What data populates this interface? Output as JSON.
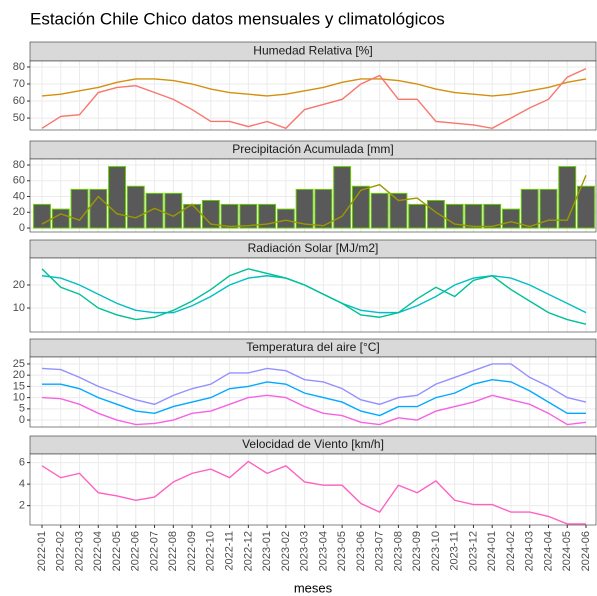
{
  "title": "Estación Chile Chico datos mensuales y climatológicos",
  "x_label": "meses",
  "categories": [
    "2022-01",
    "2022-02",
    "2022-03",
    "2022-04",
    "2022-05",
    "2022-06",
    "2022-07",
    "2022-08",
    "2022-09",
    "2022-10",
    "2022-11",
    "2022-12",
    "2023-01",
    "2023-02",
    "2023-03",
    "2023-04",
    "2023-05",
    "2023-06",
    "2023-07",
    "2023-08",
    "2023-09",
    "2023-10",
    "2023-11",
    "2023-12",
    "2024-01",
    "2024-02",
    "2024-03",
    "2024-04",
    "2024-05",
    "2024-06"
  ],
  "chart_data": [
    {
      "type": "line",
      "title": "Humedad Relativa [%]",
      "ylim": [
        43,
        83.5
      ],
      "yticks": [
        50,
        60,
        70,
        80
      ],
      "grid": true,
      "series": [
        {
          "color": "#d4900c",
          "values": [
            63,
            64,
            66,
            68,
            71,
            73,
            73,
            72,
            70,
            67,
            65,
            64,
            63,
            64,
            66,
            68,
            71,
            73,
            73,
            72,
            70,
            67,
            65,
            64,
            63,
            64,
            66,
            68,
            71,
            73
          ]
        },
        {
          "color": "#f8766d",
          "values": [
            44,
            51,
            52,
            65,
            68,
            69,
            65,
            61,
            55,
            48,
            48,
            45,
            48,
            44,
            55,
            58,
            61,
            70,
            75,
            61,
            61,
            48,
            47,
            46,
            44,
            50,
            56,
            61,
            74,
            79
          ]
        }
      ]
    },
    {
      "type": "combo",
      "title": "Precipitación Acumulada [mm]",
      "ylim": [
        -5,
        87.6
      ],
      "yticks": [
        0,
        20,
        40,
        60,
        80
      ],
      "grid": true,
      "color": "#595959",
      "edge_color": "#66cc00",
      "values": [
        30,
        24,
        49,
        49,
        78,
        53,
        44,
        44,
        30,
        35,
        30,
        30,
        30,
        24,
        49,
        49,
        78,
        53,
        44,
        44,
        30,
        35,
        30,
        30,
        30,
        24,
        49,
        49,
        78,
        53
      ],
      "series": [
        {
          "color": "#9a9a00",
          "values": [
            5,
            18,
            10,
            40,
            18,
            13,
            25,
            15,
            30,
            5,
            2,
            3,
            5,
            10,
            5,
            3,
            15,
            48,
            55,
            35,
            38,
            20,
            5,
            2,
            2,
            8,
            2,
            10,
            10,
            67
          ]
        }
      ]
    },
    {
      "type": "line",
      "title": "Radiación Solar [MJ/m2]",
      "ylim": [
        -0.4,
        31.7
      ],
      "yticks": [
        10,
        20
      ],
      "grid": true,
      "series": [
        {
          "color": "#00bfc4",
          "values": [
            24,
            23,
            20,
            16,
            12,
            9,
            8,
            8,
            11,
            15,
            20,
            23,
            24,
            23,
            20,
            16,
            12,
            9,
            8,
            8,
            11,
            15,
            20,
            23,
            24,
            23,
            20,
            16,
            12,
            8
          ]
        },
        {
          "color": "#00c094",
          "values": [
            27,
            19,
            16,
            10,
            7,
            5,
            6,
            9,
            13,
            18,
            24,
            27,
            25,
            23,
            20,
            16,
            12,
            7,
            6,
            8,
            14,
            19,
            15,
            22,
            24,
            18,
            13,
            8,
            5,
            3
          ]
        }
      ]
    },
    {
      "type": "line",
      "title": "Temperatura del aire [°C]",
      "ylim": [
        -3.1,
        28.1
      ],
      "yticks": [
        0,
        5,
        10,
        15,
        20,
        25
      ],
      "grid": true,
      "series": [
        {
          "color": "#9590ff",
          "values": [
            23,
            22.5,
            19,
            15,
            12,
            9,
            7,
            11,
            14,
            16,
            21,
            21,
            23,
            22,
            18,
            17,
            14,
            9,
            7,
            10,
            11,
            16,
            19,
            22,
            25,
            25,
            19,
            15,
            10,
            8
          ]
        },
        {
          "color": "#00a9ff",
          "values": [
            16,
            16,
            14,
            10,
            7,
            4,
            3,
            6,
            8,
            10,
            14,
            15,
            17,
            16,
            12,
            10,
            8,
            4,
            2,
            6,
            6,
            10,
            12,
            16,
            18,
            17,
            13,
            8,
            3,
            3
          ]
        },
        {
          "color": "#f564e3",
          "values": [
            10,
            9.5,
            7,
            3,
            0,
            -2,
            -1.5,
            0,
            3,
            4,
            7,
            10,
            11,
            10,
            6,
            3,
            2,
            -1,
            -2,
            1,
            0,
            4,
            6,
            8,
            11,
            9,
            7,
            3,
            -2,
            -1
          ]
        }
      ]
    },
    {
      "type": "line",
      "title": "Velocidad de Viento [km/h]",
      "ylim": [
        0.2,
        6.8
      ],
      "yticks": [
        2,
        4,
        6
      ],
      "grid": true,
      "series": [
        {
          "color": "#ff61c3",
          "values": [
            5.7,
            4.6,
            5.0,
            3.2,
            2.9,
            2.5,
            2.8,
            4.2,
            5.0,
            5.4,
            4.6,
            6.1,
            5.0,
            5.7,
            4.2,
            3.9,
            3.9,
            2.2,
            1.4,
            3.9,
            3.2,
            4.3,
            2.5,
            2.1,
            2.1,
            1.4,
            1.4,
            1.0,
            0.3,
            0.3
          ]
        }
      ]
    }
  ]
}
